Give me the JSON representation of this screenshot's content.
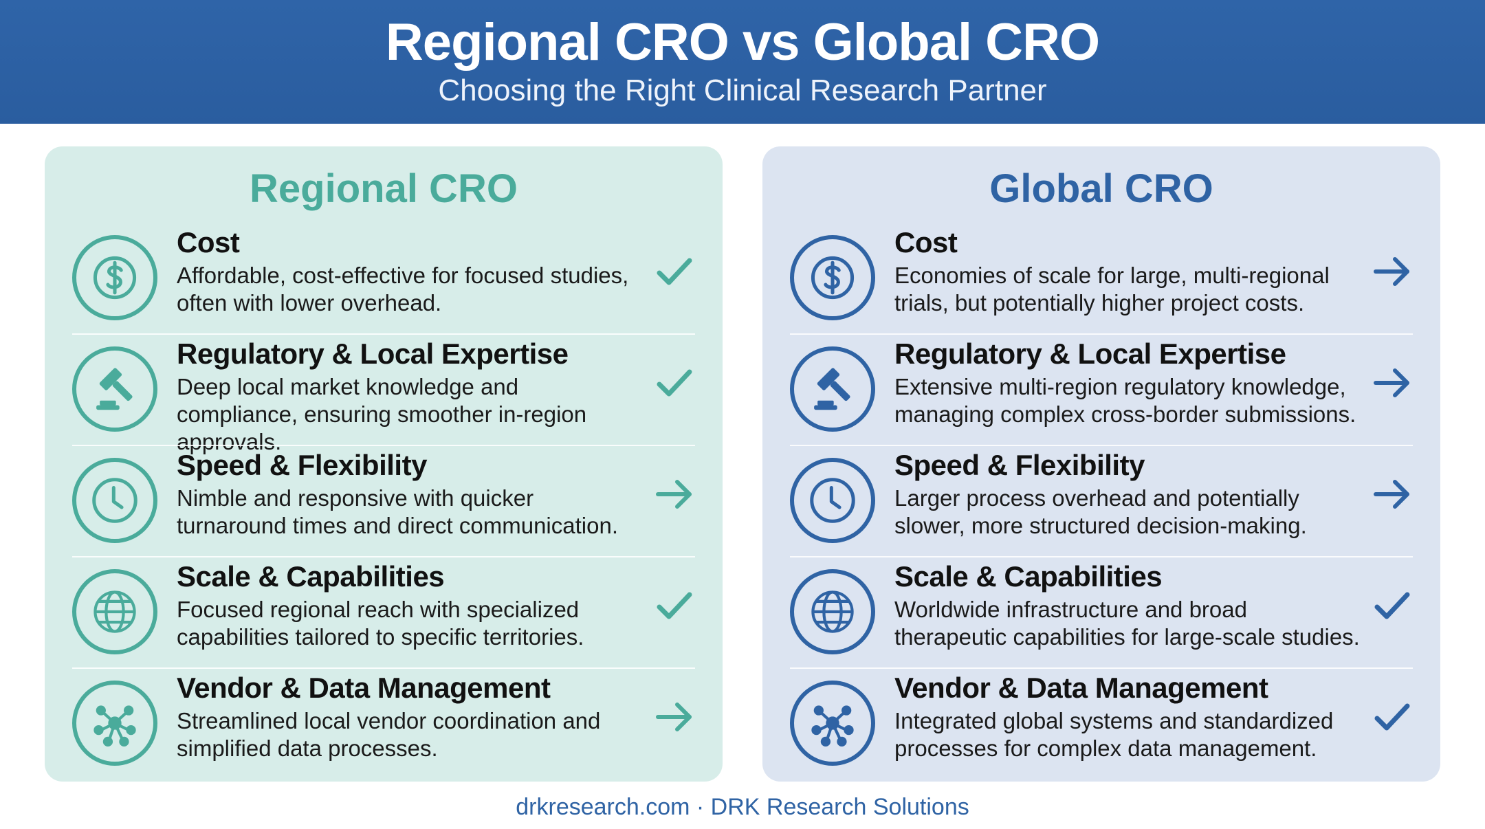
{
  "header": {
    "title": "Regional CRO vs Global CRO",
    "subtitle": "Choosing the Right Clinical Research Partner"
  },
  "colors": {
    "banner": "#2f64a8",
    "regional_accent": "#4aab9b",
    "regional_panel": "#d7ede9",
    "global_accent": "#2f63a4",
    "global_panel": "#dce4f1"
  },
  "regional": {
    "title": "Regional CRO",
    "rows": [
      {
        "icon": "dollar-icon",
        "title": "Cost",
        "desc": "Affordable, cost-effective for focused studies, often with lower overhead.",
        "mark": "check"
      },
      {
        "icon": "gavel-icon",
        "title": "Regulatory & Local Expertise",
        "desc": "Deep local market knowledge and compliance, ensuring smoother in-region approvals.",
        "mark": "check"
      },
      {
        "icon": "clock-icon",
        "title": "Speed & Flexibility",
        "desc": "Nimble and responsive with quicker turnaround times and direct communication.",
        "mark": "arrow"
      },
      {
        "icon": "globe-icon",
        "title": "Scale & Capabilities",
        "desc": "Focused regional reach with specialized capabilities tailored to specific territories.",
        "mark": "check"
      },
      {
        "icon": "network-icon",
        "title": "Vendor & Data Management",
        "desc": "Streamlined local vendor coordination and simplified data processes.",
        "mark": "arrow"
      }
    ]
  },
  "global": {
    "title": "Global CRO",
    "rows": [
      {
        "icon": "dollar-icon",
        "title": "Cost",
        "desc": "Economies of scale for large, multi-regional trials, but potentially higher project costs.",
        "mark": "arrow"
      },
      {
        "icon": "gavel-icon",
        "title": "Regulatory & Local Expertise",
        "desc": "Extensive multi-region regulatory knowledge, managing complex cross-border submissions.",
        "mark": "arrow"
      },
      {
        "icon": "clock-icon",
        "title": "Speed & Flexibility",
        "desc": "Larger process overhead and potentially slower, more structured decision-making.",
        "mark": "arrow"
      },
      {
        "icon": "globe-icon",
        "title": "Scale & Capabilities",
        "desc": "Worldwide infrastructure and broad therapeutic capabilities for large-scale studies.",
        "mark": "check"
      },
      {
        "icon": "network-icon",
        "title": "Vendor & Data Management",
        "desc": "Integrated global systems and standardized processes for complex data management.",
        "mark": "check"
      }
    ]
  },
  "footer": {
    "text": "drkresearch.com · DRK Research Solutions"
  }
}
